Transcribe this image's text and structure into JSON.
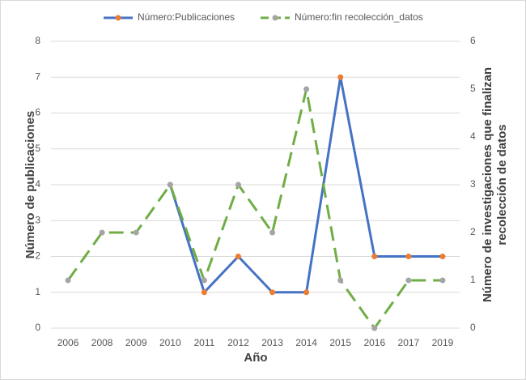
{
  "chart_data": {
    "type": "line",
    "categories": [
      "2006",
      "2008",
      "2009",
      "2010",
      "2011",
      "2012",
      "2013",
      "2014",
      "2015",
      "2016",
      "2017",
      "2019"
    ],
    "series": [
      {
        "name": "Número:Publicaciones",
        "color": "#4472c4",
        "marker_color": "#ed7d31",
        "dash": false,
        "values": [
          null,
          null,
          null,
          4,
          1,
          2,
          1,
          1,
          7,
          2,
          2,
          2
        ]
      },
      {
        "name": "Número:fin recolección_datos",
        "color": "#70ad47",
        "marker_color": "#a5a5a5",
        "dash": true,
        "axis": "y2",
        "values": [
          1,
          2,
          2,
          3,
          1,
          3,
          2,
          5,
          1,
          0,
          1,
          1
        ]
      }
    ],
    "xlabel": "Año",
    "ylabel": "Número de publicaciones",
    "y2label": [
      "Número de investigaciones que finalizan",
      "recolección de datos"
    ],
    "ylim": [
      0,
      8
    ],
    "yticks": [
      0,
      1,
      2,
      3,
      4,
      5,
      6,
      7,
      8
    ],
    "y2lim": [
      0,
      6
    ],
    "y2ticks": [
      0,
      1,
      2,
      3,
      4,
      5,
      6
    ],
    "grid": true
  }
}
